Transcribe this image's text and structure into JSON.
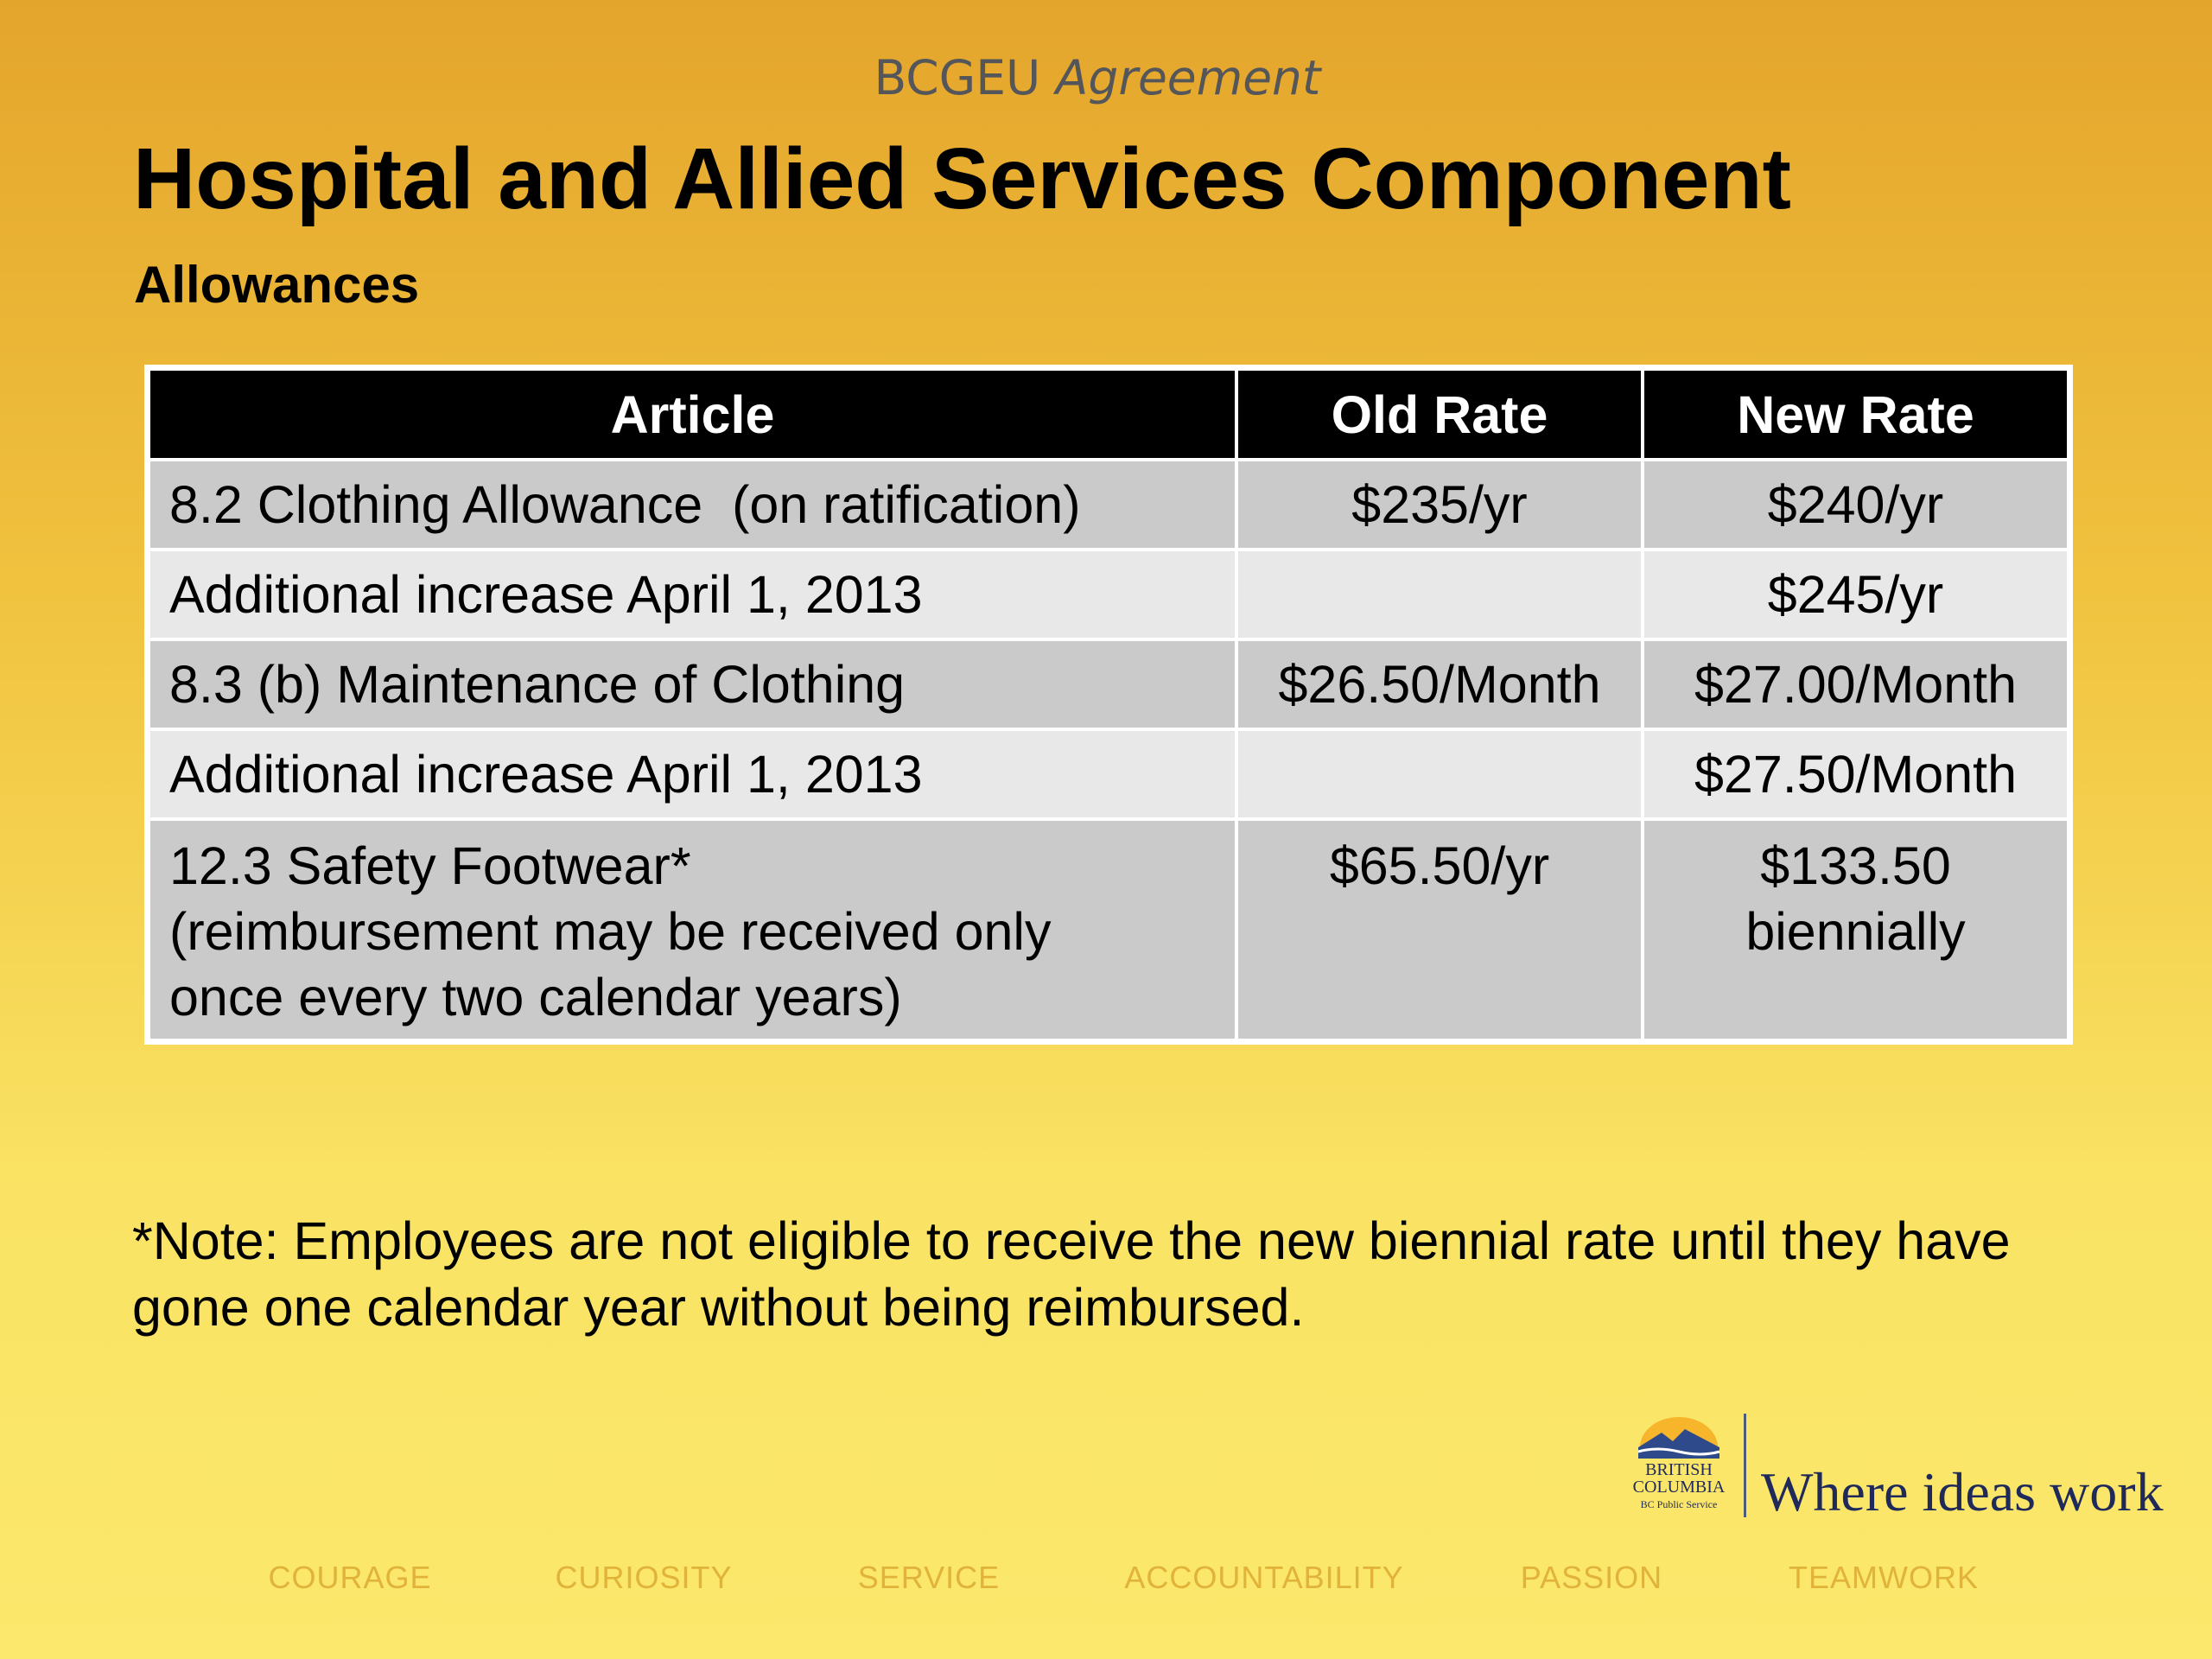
{
  "header": {
    "supertitle_main": "BCGEU",
    "supertitle_italic": "Agreement",
    "title": "Hospital and Allied Services Component",
    "subtitle": "Allowances"
  },
  "table": {
    "headers": [
      "Article",
      "Old Rate",
      "New Rate"
    ],
    "rows": [
      {
        "article": "8.2 Clothing Allowance  (on ratification)",
        "old": "$235/yr",
        "new": "$240/yr"
      },
      {
        "article": "Additional increase April 1, 2013",
        "old": "",
        "new": "$245/yr"
      },
      {
        "article": "8.3 (b) Maintenance of Clothing",
        "old": "$26.50/Month",
        "new": "$27.00/Month"
      },
      {
        "article": "Additional increase April 1, 2013",
        "old": "",
        "new": "$27.50/Month"
      },
      {
        "article": "12.3 Safety Footwear*",
        "article_line2": "(reimbursement may be received only",
        "article_line3": "once every two calendar years)",
        "old": "$65.50/yr",
        "new": "$133.50",
        "new_line2": "biennially"
      }
    ]
  },
  "note": "*Note: Employees are not eligible to receive the new biennial rate until they have gone one calendar year without being reimbursed.",
  "footer": {
    "logo_lines": [
      "BRITISH",
      "COLUMBIA",
      "BC Public Service"
    ],
    "tagline": "Where ideas work",
    "values": [
      "COURAGE",
      "CURIOSITY",
      "SERVICE",
      "ACCOUNTABILITY",
      "PASSION",
      "TEAMWORK"
    ]
  },
  "colors": {
    "header_bg": "#000000",
    "row_dark": "#cacaca",
    "row_light": "#e8e8e8",
    "values_text": "#e1b33a",
    "tagline": "#1f2a5a"
  }
}
